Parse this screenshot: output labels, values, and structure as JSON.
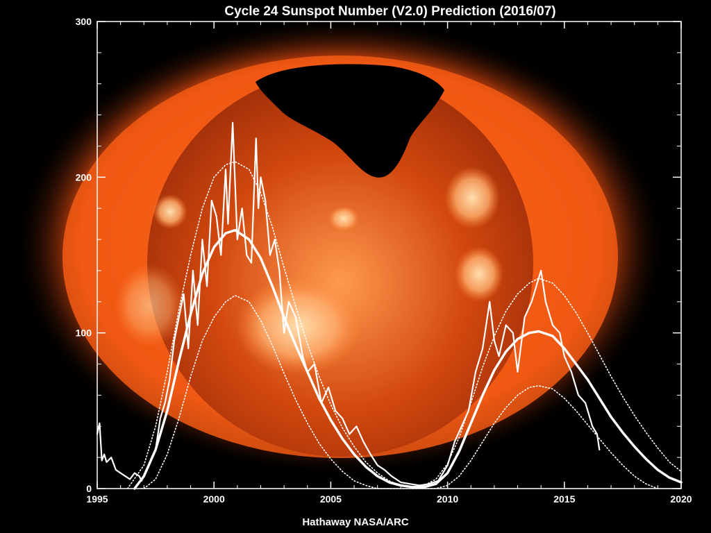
{
  "chart_data": {
    "type": "line",
    "title": "Cycle 24 Sunspot Number (V2.0) Prediction (2016/07)",
    "credit": "Hathaway  NASA/ARC",
    "xlabel": "",
    "ylabel": "",
    "xlim": [
      1995,
      2020
    ],
    "ylim": [
      0,
      300
    ],
    "x_ticks": [
      1995,
      2000,
      2005,
      2010,
      2015,
      2020
    ],
    "y_ticks": [
      0,
      100,
      200,
      300
    ],
    "grid": false,
    "legend": "none",
    "background_image": "soft-xray-sun-image",
    "colors": {
      "background": "#000000",
      "line": "#ffffff",
      "axes": "#ffffff",
      "corona_outer": "#c23408",
      "corona_mid": "#ff6a1a",
      "disk": "#c23a0a",
      "disk_bright": "#ffb070"
    },
    "series": [
      {
        "style": "solid-thin",
        "x": [
          1995.0,
          1995.1,
          1995.2,
          1995.3,
          1995.4,
          1995.6,
          1995.8,
          1996.0,
          1996.2,
          1996.4,
          1996.6,
          1996.8,
          1996.9,
          1997.1,
          1997.3,
          1997.5,
          1997.7,
          1997.9,
          1998.1,
          1998.3,
          1998.5,
          1998.7,
          1998.9,
          1999.1,
          1999.3,
          1999.5,
          1999.7,
          1999.9,
          2000.1,
          2000.3,
          2000.5,
          2000.6,
          2000.8,
          2001.0,
          2001.2,
          2001.4,
          2001.6,
          2001.8,
          2001.9,
          2002.0,
          2002.2,
          2002.4,
          2002.6,
          2002.8,
          2003.0,
          2003.2,
          2003.5,
          2003.8,
          2004.0,
          2004.3,
          2004.6,
          2004.9,
          2005.2,
          2005.5,
          2005.8,
          2006.1,
          2006.4,
          2006.7,
          2007.0,
          2007.3,
          2007.6,
          2008.0,
          2008.4,
          2008.8,
          2009.2,
          2009.6,
          2010.0,
          2010.3,
          2010.6,
          2010.9,
          2011.2,
          2011.5,
          2011.8,
          2012.0,
          2012.2,
          2012.5,
          2012.8,
          2013.0,
          2013.3,
          2013.6,
          2013.9,
          2014.0,
          2014.2,
          2014.5,
          2014.8,
          2015.0,
          2015.3,
          2015.6,
          2015.9,
          2016.2,
          2016.4,
          2016.5
        ],
        "y": [
          35,
          42,
          18,
          22,
          17,
          20,
          12,
          10,
          8,
          6,
          10,
          8,
          5,
          12,
          18,
          25,
          45,
          55,
          70,
          95,
          110,
          125,
          90,
          140,
          105,
          160,
          130,
          185,
          175,
          150,
          205,
          170,
          235,
          160,
          180,
          150,
          145,
          225,
          180,
          200,
          185,
          150,
          160,
          140,
          100,
          120,
          110,
          85,
          75,
          80,
          55,
          65,
          50,
          45,
          35,
          40,
          30,
          22,
          15,
          12,
          8,
          4,
          3,
          2,
          3,
          5,
          15,
          30,
          40,
          50,
          75,
          90,
          120,
          95,
          85,
          105,
          100,
          75,
          110,
          120,
          135,
          140,
          120,
          105,
          100,
          85,
          75,
          60,
          55,
          40,
          35,
          25
        ]
      },
      {
        "style": "solid-thick",
        "x": [
          1996.6,
          1997.0,
          1997.5,
          1998.0,
          1998.5,
          1999.0,
          1999.5,
          2000.0,
          2000.5,
          2000.9,
          2001.5,
          2002.0,
          2002.5,
          2003.0,
          2003.5,
          2004.0,
          2004.5,
          2005.0,
          2005.5,
          2006.0,
          2006.5,
          2007.0,
          2007.5,
          2008.0,
          2008.5,
          2009.0,
          2009.5,
          2010.0,
          2010.5,
          2011.0,
          2011.5,
          2012.0,
          2012.5,
          2013.0,
          2013.5,
          2013.9,
          2014.5,
          2015.0,
          2015.5,
          2016.0,
          2016.5,
          2017.0,
          2017.5,
          2018.0,
          2018.5,
          2019.0,
          2019.5,
          2020.0
        ],
        "y": [
          0,
          8,
          25,
          50,
          82,
          112,
          138,
          155,
          164,
          166,
          160,
          148,
          130,
          110,
          92,
          75,
          58,
          44,
          32,
          22,
          14,
          8,
          4,
          2,
          1,
          1,
          3,
          10,
          24,
          42,
          60,
          76,
          88,
          96,
          100,
          101,
          98,
          90,
          80,
          70,
          58,
          46,
          36,
          27,
          19,
          12,
          7,
          4
        ]
      },
      {
        "style": "dotted-upper",
        "x": [
          1996.3,
          1997.0,
          1997.5,
          1998.0,
          1998.5,
          1999.0,
          1999.5,
          2000.0,
          2000.5,
          2000.9,
          2001.5,
          2002.0,
          2002.5,
          2003.0,
          2003.5,
          2004.0,
          2004.5,
          2005.0,
          2005.5,
          2006.0,
          2006.5,
          2007.0,
          2007.5,
          2008.0,
          2008.5,
          2009.0,
          2009.5,
          2010.0,
          2010.5,
          2011.0,
          2011.5,
          2012.0,
          2012.5,
          2013.0,
          2013.5,
          2013.9,
          2014.5,
          2015.0,
          2015.5,
          2016.0,
          2016.5,
          2017.0,
          2017.5,
          2018.0,
          2018.5,
          2019.0,
          2019.5,
          2020.0
        ],
        "y": [
          0,
          15,
          40,
          75,
          115,
          150,
          180,
          200,
          208,
          210,
          205,
          190,
          168,
          142,
          117,
          93,
          72,
          54,
          39,
          27,
          17,
          10,
          5,
          2,
          1,
          2,
          6,
          16,
          33,
          55,
          78,
          98,
          114,
          125,
          132,
          135,
          132,
          124,
          113,
          100,
          86,
          72,
          59,
          47,
          36,
          26,
          17,
          11
        ]
      },
      {
        "style": "dotted-lower",
        "x": [
          1997.0,
          1997.5,
          1998.0,
          1998.5,
          1999.0,
          1999.5,
          2000.0,
          2000.5,
          2000.9,
          2001.5,
          2002.0,
          2002.5,
          2003.0,
          2003.5,
          2004.0,
          2004.5,
          2005.0,
          2005.5,
          2006.0,
          2006.5,
          2007.0,
          2007.5,
          2008.0,
          2008.5,
          2009.0,
          2009.5,
          2010.0,
          2010.5,
          2011.0,
          2011.5,
          2012.0,
          2012.5,
          2013.0,
          2013.5,
          2013.9,
          2014.5,
          2015.0,
          2015.5,
          2016.0,
          2016.5,
          2017.0,
          2017.5,
          2018.0,
          2018.5,
          2019.0
        ],
        "y": [
          0,
          6,
          22,
          45,
          72,
          95,
          110,
          120,
          124,
          120,
          108,
          92,
          74,
          57,
          42,
          29,
          19,
          11,
          5,
          2,
          0,
          0,
          0,
          0,
          0,
          0,
          2,
          8,
          18,
          30,
          42,
          52,
          60,
          65,
          66,
          64,
          58,
          50,
          41,
          32,
          23,
          15,
          8,
          3,
          0
        ]
      }
    ]
  }
}
